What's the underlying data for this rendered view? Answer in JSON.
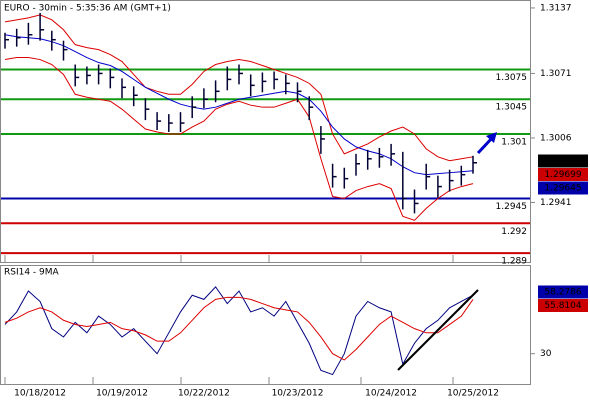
{
  "chart_data": [
    {
      "type": "ohlc",
      "title": "EURO - 30min - 5:35:36 AM (GMT+1)",
      "categories": [
        null,
        null,
        null,
        "10/18/2012",
        null,
        null,
        null,
        null,
        null,
        null,
        "10/19/2012",
        null,
        null,
        null,
        null,
        null,
        null,
        "10/22/2012",
        null,
        null,
        null,
        null,
        null,
        null,
        null,
        "10/23/2012",
        null,
        null,
        null,
        null,
        null,
        null,
        null,
        "10/24/2012",
        null,
        null,
        null,
        null,
        null,
        null,
        "10/25/2012"
      ],
      "high": [
        1.3112,
        1.3116,
        1.3122,
        1.3132,
        1.3114,
        1.3104,
        1.308,
        1.3078,
        1.308,
        1.3076,
        1.3066,
        1.3058,
        1.3046,
        1.3032,
        1.303,
        1.3032,
        1.3048,
        1.3056,
        1.3064,
        1.3078,
        1.308,
        1.307,
        1.3072,
        1.3073,
        1.307,
        1.3062,
        1.3048,
        1.3018,
        1.298,
        1.2976,
        1.299,
        1.2994,
        1.2996,
        1.3,
        1.2992,
        1.2954,
        1.298,
        1.2968,
        1.2974,
        1.2978,
        1.2988
      ],
      "low": [
        1.3096,
        1.3098,
        1.31,
        1.3104,
        1.3094,
        1.3084,
        1.3058,
        1.306,
        1.306,
        1.3056,
        1.3046,
        1.3038,
        1.3024,
        1.3014,
        1.3012,
        1.3012,
        1.3026,
        1.3036,
        1.3042,
        1.3054,
        1.306,
        1.3048,
        1.3052,
        1.3055,
        1.305,
        1.3042,
        1.3024,
        1.299,
        1.2956,
        1.2955,
        1.2968,
        1.2974,
        1.2976,
        1.2978,
        1.2934,
        1.293,
        1.2954,
        1.2946,
        1.2952,
        1.2958,
        1.297
      ],
      "close": [
        1.3105,
        1.3107,
        1.311,
        1.3115,
        1.3105,
        1.3095,
        1.3067,
        1.3069,
        1.3071,
        1.3067,
        1.3057,
        1.3049,
        1.3035,
        1.3023,
        1.3021,
        1.3021,
        1.3037,
        1.3045,
        1.3053,
        1.3065,
        1.3071,
        1.3059,
        1.3063,
        1.3065,
        1.3061,
        1.3053,
        1.3037,
        1.3005,
        1.2967,
        1.2965,
        1.298,
        1.2985,
        1.2987,
        1.299,
        1.2945,
        1.294,
        1.2967,
        1.2957,
        1.2963,
        1.2969,
        1.2981
      ],
      "color": "#000033",
      "overlays": [
        {
          "color": "#dd0000",
          "values": [
            1.3123,
            1.3125,
            1.3127,
            1.313,
            1.3125,
            1.3115,
            1.31,
            1.3097,
            1.3095,
            1.309,
            1.3083,
            1.307,
            1.3057,
            1.3053,
            1.305,
            1.305,
            1.306,
            1.3073,
            1.308,
            1.3083,
            1.3085,
            1.3083,
            1.3079,
            1.3075,
            1.3071,
            1.3067,
            1.3061,
            1.305,
            1.301,
            1.299,
            1.2995,
            1.3,
            1.3007,
            1.3013,
            1.3017,
            1.301,
            1.2995,
            1.2987,
            1.2983,
            1.2985,
            1.2987
          ]
        },
        {
          "color": "#dd0000",
          "values": [
            1.3085,
            1.3087,
            1.3087,
            1.3085,
            1.308,
            1.307,
            1.305,
            1.3047,
            1.3045,
            1.3043,
            1.3035,
            1.3025,
            1.3015,
            1.3012,
            1.301,
            1.301,
            1.3017,
            1.3023,
            1.3035,
            1.304,
            1.3043,
            1.3039,
            1.3037,
            1.3037,
            1.3041,
            1.3045,
            1.3027,
            1.2985,
            1.2947,
            1.2945,
            1.2953,
            1.2957,
            1.296,
            1.2955,
            1.2927,
            1.2923,
            1.2935,
            1.2945,
            1.2953,
            1.2957,
            1.296
          ]
        },
        {
          "color": "#0000cc",
          "values": [
            1.311,
            1.3108,
            1.3107,
            1.3106,
            1.3103,
            1.3099,
            1.3093,
            1.3087,
            1.3082,
            1.3079,
            1.3073,
            1.3065,
            1.3057,
            1.3051,
            1.3045,
            1.304,
            1.3037,
            1.3035,
            1.3037,
            1.3041,
            1.3045,
            1.3047,
            1.3049,
            1.3051,
            1.3053,
            1.3051,
            1.3045,
            1.3033,
            1.3017,
            1.3005,
            1.2997,
            1.2993,
            1.299,
            1.2985,
            1.2977,
            1.2971,
            1.2969,
            1.297,
            1.2971,
            1.2972,
            1.2973
          ]
        }
      ],
      "levels": [
        {
          "value": 1.3075,
          "color": "#119911"
        },
        {
          "value": 1.3045,
          "color": "#119911"
        },
        {
          "value": 1.301,
          "color": "#119911"
        },
        {
          "value": 1.2945,
          "color": "#0000aa"
        },
        {
          "value": 1.292,
          "color": "#cc0000"
        },
        {
          "value": 1.289,
          "color": "#cc0000"
        }
      ],
      "tags": [
        {
          "label": "1.29808",
          "color": "#000000"
        },
        {
          "label": "1.29699",
          "color": "#cc0000"
        },
        {
          "label": "1.29645",
          "color": "#0000aa"
        }
      ],
      "ylim": [
        1.288,
        1.3145
      ],
      "yticks": [
        1.3137,
        1.3071,
        1.3006,
        1.2941
      ]
    },
    {
      "type": "line",
      "title": "RSI14 - 9MA",
      "series": [
        {
          "color": "#000080",
          "values": [
            44,
            50,
            60,
            55,
            42,
            38,
            45,
            40,
            48,
            44,
            38,
            42,
            36,
            30,
            40,
            50,
            58,
            56,
            62,
            54,
            60,
            50,
            52,
            48,
            55,
            45,
            35,
            22,
            20,
            30,
            48,
            55,
            52,
            50,
            25,
            35,
            42,
            46,
            52,
            55,
            58
          ]
        },
        {
          "color": "#dd0000",
          "values": [
            45,
            47,
            50,
            52,
            50,
            46,
            44,
            43,
            44,
            45,
            42,
            41,
            39,
            36,
            36,
            40,
            46,
            52,
            56,
            57,
            57,
            56,
            54,
            52,
            51,
            50,
            45,
            38,
            30,
            27,
            32,
            38,
            44,
            48,
            45,
            42,
            40,
            40,
            44,
            48,
            56
          ]
        }
      ],
      "tags": [
        {
          "label": "58.2786",
          "color": "#0000aa"
        },
        {
          "label": "55.8104",
          "color": "#cc0000"
        }
      ],
      "ylim": [
        15,
        72
      ],
      "yticks": [
        30.0
      ]
    }
  ]
}
